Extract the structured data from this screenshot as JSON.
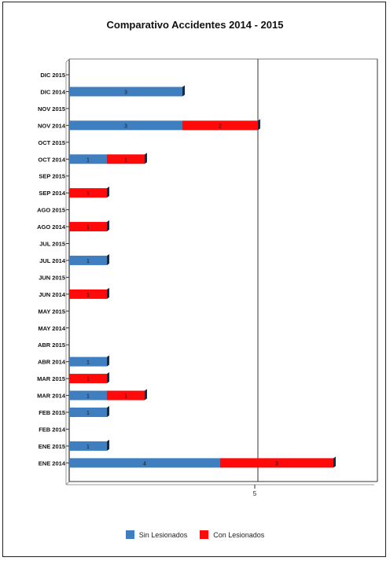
{
  "chart_data": {
    "type": "bar",
    "orientation": "horizontal",
    "stacked": true,
    "title": "Comparativo Accidentes 2014 - 2015",
    "categories": [
      "DIC 2015",
      "DIC 2014",
      "NOV 2015",
      "NOV 2014",
      "OCT 2015",
      "OCT 2014",
      "SEP 2015",
      "SEP 2014",
      "AGO 2015",
      "AGO 2014",
      "JUL 2015",
      "JUL 2014",
      "JUN 2015",
      "JUN 2014",
      "MAY 2015",
      "MAY 2014",
      "ABR 2015",
      "ABR 2014",
      "MAR 2015",
      "MAR 2014",
      "FEB 2015",
      "FEB 2014",
      "ENE 2015",
      "ENE 2014"
    ],
    "series": [
      {
        "name": "Sin Lesionados",
        "color": "#3f7fc0",
        "values": [
          0,
          3,
          0,
          3,
          0,
          1,
          0,
          0,
          0,
          0,
          0,
          1,
          0,
          0,
          0,
          0,
          0,
          1,
          0,
          1,
          1,
          0,
          1,
          4
        ]
      },
      {
        "name": "Con Lesionados",
        "color": "#ff0a0a",
        "values": [
          0,
          0,
          0,
          2,
          0,
          1,
          0,
          1,
          0,
          1,
          0,
          0,
          0,
          1,
          0,
          0,
          0,
          0,
          1,
          1,
          0,
          0,
          0,
          3
        ]
      }
    ],
    "xlim": [
      0,
      8
    ],
    "xticks": [
      "5"
    ],
    "legend_position": "bottom"
  }
}
